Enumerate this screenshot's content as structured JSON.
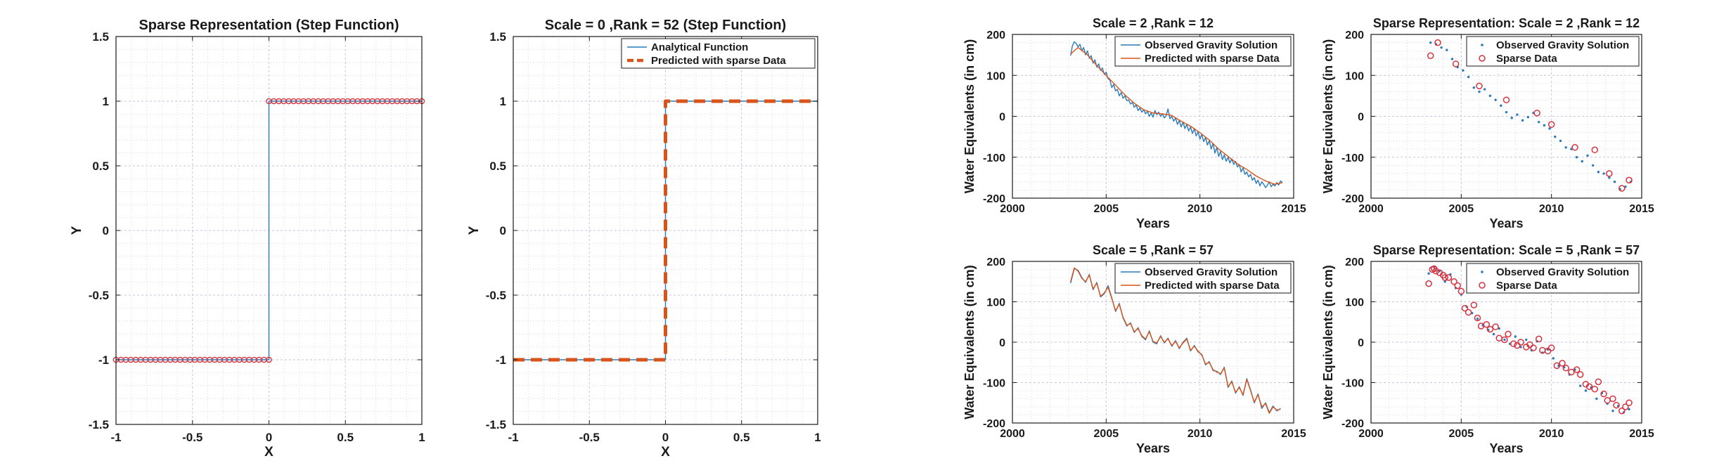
{
  "colors": {
    "blue": "#2a7ab8",
    "orange": "#d9541a",
    "marker_red": "#d4323f",
    "grid_major": "#c9c2e3",
    "grid_minor": "#d2d2d2",
    "axis": "#1a1a1a"
  },
  "chart_data": [
    {
      "type": "line",
      "title": "Sparse Representation (Step Function)",
      "xlabel": "X",
      "ylabel": "Y",
      "xlim": [
        -1,
        1
      ],
      "ylim": [
        -1.5,
        1.5
      ],
      "xticks": [
        "-1",
        "-0.5",
        "0",
        "0.5",
        "1"
      ],
      "yticks": [
        "-1.5",
        "-1",
        "-0.5",
        "0",
        "0.5",
        "1",
        "1.5"
      ],
      "grid": true,
      "legend": [],
      "series": [
        {
          "style": "line",
          "x": [
            -1,
            0,
            0,
            1
          ],
          "y": [
            -1,
            -1,
            1,
            1
          ]
        },
        {
          "style": "markers",
          "step_from": -1,
          "step_to": 1,
          "count_each_side": 32,
          "left_y": -1,
          "right_y": 1
        }
      ]
    },
    {
      "type": "line",
      "title": "Scale = 0 ,Rank = 52 (Step Function)",
      "xlabel": "X",
      "ylabel": "Y",
      "xlim": [
        -1,
        1
      ],
      "ylim": [
        -1.5,
        1.5
      ],
      "xticks": [
        "-1",
        "-0.5",
        "0",
        "0.5",
        "1"
      ],
      "yticks": [
        "-1.5",
        "-1",
        "-0.5",
        "0",
        "0.5",
        "1",
        "1.5"
      ],
      "grid": true,
      "legend_position": "top-right",
      "series": [
        {
          "name": "Analytical Function",
          "style": "line",
          "x": [
            -1,
            0,
            0,
            1
          ],
          "y": [
            -1,
            -1,
            1,
            1
          ]
        },
        {
          "name": "Predicted with sparse Data",
          "style": "dashed",
          "x": [
            -1,
            0,
            0,
            1
          ],
          "y": [
            -1,
            -1,
            1,
            1
          ]
        }
      ]
    },
    {
      "type": "line",
      "title": "Scale = 2 ,Rank = 12",
      "xlabel": "Years",
      "ylabel": "Water Equivalents (in cm)",
      "xlim": [
        2000,
        2015
      ],
      "ylim": [
        -200,
        200
      ],
      "xticks": [
        "2000",
        "2005",
        "2010",
        "2015"
      ],
      "yticks": [
        "-200",
        "-100",
        "0",
        "100",
        "200"
      ],
      "grid": true,
      "legend_position": "top-right",
      "series": [
        {
          "name": "Observed Gravity Solution",
          "style": "line",
          "x": [
            2003.1,
            2003.2,
            2003.3,
            2003.4,
            2003.5,
            2003.6,
            2003.7,
            2003.8,
            2003.9,
            2004.0,
            2004.1,
            2004.2,
            2004.3,
            2004.4,
            2004.5,
            2004.6,
            2004.7,
            2004.8,
            2004.9,
            2005.0,
            2005.1,
            2005.2,
            2005.3,
            2005.4,
            2005.5,
            2005.6,
            2005.7,
            2005.8,
            2005.9,
            2006.0,
            2006.1,
            2006.2,
            2006.3,
            2006.4,
            2006.5,
            2006.6,
            2006.7,
            2006.8,
            2006.9,
            2007.0,
            2007.1,
            2007.2,
            2007.3,
            2007.4,
            2007.5,
            2007.6,
            2007.7,
            2007.8,
            2007.9,
            2008.0,
            2008.1,
            2008.2,
            2008.3,
            2008.4,
            2008.5,
            2008.6,
            2008.7,
            2008.8,
            2008.9,
            2009.0,
            2009.1,
            2009.2,
            2009.3,
            2009.4,
            2009.5,
            2009.6,
            2009.7,
            2009.8,
            2009.9,
            2010.0,
            2010.1,
            2010.2,
            2010.3,
            2010.4,
            2010.5,
            2010.6,
            2010.7,
            2010.8,
            2010.9,
            2011.0,
            2011.1,
            2011.2,
            2011.3,
            2011.4,
            2011.5,
            2011.6,
            2011.7,
            2011.8,
            2011.9,
            2012.0,
            2012.1,
            2012.2,
            2012.3,
            2012.4,
            2012.5,
            2012.6,
            2012.7,
            2012.8,
            2012.9,
            2013.0,
            2013.1,
            2013.2,
            2013.3,
            2013.4,
            2013.5,
            2013.6,
            2013.7,
            2013.8,
            2013.9,
            2014.0,
            2014.1,
            2014.2,
            2014.3,
            2014.4
          ],
          "y": [
            148,
            172,
            182,
            178,
            170,
            176,
            160,
            168,
            150,
            160,
            142,
            148,
            130,
            138,
            120,
            128,
            112,
            118,
            102,
            108,
            92,
            88,
            70,
            78,
            62,
            66,
            50,
            58,
            44,
            50,
            38,
            40,
            30,
            34,
            22,
            28,
            14,
            20,
            10,
            16,
            6,
            12,
            0,
            8,
            -2,
            14,
            4,
            10,
            0,
            6,
            -4,
            2,
            18,
            -6,
            0,
            -12,
            -4,
            -20,
            -10,
            -26,
            -14,
            -30,
            -20,
            -36,
            -26,
            -42,
            -30,
            -48,
            -38,
            -56,
            -44,
            -62,
            -52,
            -70,
            -60,
            -80,
            -66,
            -90,
            -76,
            -98,
            -86,
            -106,
            -94,
            -110,
            -100,
            -114,
            -104,
            -118,
            -110,
            -124,
            -118,
            -136,
            -126,
            -142,
            -136,
            -148,
            -142,
            -156,
            -150,
            -164,
            -156,
            -170,
            -160,
            -166,
            -174,
            -168,
            -160,
            -172,
            -166,
            -170,
            -162,
            -168,
            -158,
            -162
          ]
        },
        {
          "name": "Predicted with sparse Data",
          "style": "line",
          "x": [
            2003.1,
            2003.5,
            2004.0,
            2004.5,
            2005.0,
            2005.5,
            2006.0,
            2006.5,
            2007.0,
            2007.5,
            2008.0,
            2008.5,
            2009.0,
            2009.5,
            2010.0,
            2010.5,
            2011.0,
            2011.5,
            2012.0,
            2012.5,
            2013.0,
            2013.5,
            2014.0,
            2014.4
          ],
          "y": [
            152,
            168,
            150,
            124,
            100,
            76,
            52,
            32,
            16,
            8,
            6,
            2,
            -12,
            -24,
            -40,
            -58,
            -80,
            -98,
            -116,
            -130,
            -146,
            -158,
            -166,
            -162
          ]
        }
      ]
    },
    {
      "type": "scatter",
      "title": "Sparse Representation: Scale = 2 ,Rank = 12",
      "xlabel": "Years",
      "ylabel": "Water Equivalents (in cm)",
      "xlim": [
        2000,
        2015
      ],
      "ylim": [
        -200,
        200
      ],
      "xticks": [
        "2000",
        "2005",
        "2010",
        "2015"
      ],
      "yticks": [
        "-200",
        "-100",
        "0",
        "100",
        "200"
      ],
      "grid": true,
      "legend_position": "top-right",
      "series": [
        {
          "name": "Observed Gravity Solution",
          "style": "dots",
          "x": [
            2003.3,
            2003.6,
            2003.9,
            2004.2,
            2004.5,
            2004.8,
            2005.1,
            2005.4,
            2005.7,
            2006.0,
            2006.3,
            2006.6,
            2006.9,
            2007.2,
            2007.5,
            2007.8,
            2008.1,
            2008.4,
            2008.7,
            2009.0,
            2009.3,
            2009.6,
            2009.9,
            2010.2,
            2010.5,
            2010.8,
            2011.1,
            2011.4,
            2011.7,
            2012.0,
            2012.3,
            2012.6,
            2012.9,
            2013.2,
            2013.5,
            2013.8,
            2014.1,
            2014.4
          ],
          "y": [
            180,
            176,
            168,
            162,
            140,
            120,
            112,
            96,
            70,
            60,
            66,
            50,
            40,
            26,
            10,
            -4,
            4,
            -10,
            -2,
            8,
            -14,
            -22,
            -30,
            -50,
            -60,
            -76,
            -80,
            -100,
            -110,
            -96,
            -120,
            -136,
            -140,
            -150,
            -160,
            -178,
            -172,
            -160
          ]
        },
        {
          "name": "Sparse Data",
          "style": "circles",
          "x": [
            2003.3,
            2003.7,
            2004.7,
            2006.0,
            2007.5,
            2009.2,
            2010.0,
            2011.3,
            2012.4,
            2013.2,
            2013.9,
            2014.3
          ],
          "y": [
            148,
            180,
            128,
            74,
            40,
            8,
            -20,
            -76,
            -82,
            -140,
            -176,
            -156
          ]
        }
      ]
    },
    {
      "type": "line",
      "title": "Scale = 5 ,Rank = 57",
      "xlabel": "Years",
      "ylabel": "Water Equivalents (in cm)",
      "xlim": [
        2000,
        2015
      ],
      "ylim": [
        -200,
        200
      ],
      "xticks": [
        "2000",
        "2005",
        "2010",
        "2015"
      ],
      "yticks": [
        "-200",
        "-100",
        "0",
        "100",
        "200"
      ],
      "grid": true,
      "legend_position": "top-right",
      "series": [
        {
          "name": "Observed Gravity Solution",
          "style": "line",
          "x": [
            2003.1,
            2003.3,
            2003.5,
            2003.7,
            2003.9,
            2004.1,
            2004.3,
            2004.5,
            2004.7,
            2004.9,
            2005.1,
            2005.3,
            2005.5,
            2005.7,
            2005.9,
            2006.1,
            2006.3,
            2006.5,
            2006.7,
            2006.9,
            2007.1,
            2007.3,
            2007.5,
            2007.7,
            2007.9,
            2008.1,
            2008.3,
            2008.5,
            2008.7,
            2008.9,
            2009.1,
            2009.3,
            2009.5,
            2009.7,
            2009.9,
            2010.1,
            2010.3,
            2010.5,
            2010.7,
            2010.9,
            2011.1,
            2011.3,
            2011.5,
            2011.7,
            2011.9,
            2012.1,
            2012.3,
            2012.5,
            2012.7,
            2012.9,
            2013.1,
            2013.3,
            2013.5,
            2013.7,
            2013.9,
            2014.1,
            2014.3
          ],
          "y": [
            146,
            182,
            178,
            160,
            148,
            168,
            130,
            148,
            112,
            120,
            140,
            110,
            76,
            96,
            60,
            40,
            48,
            24,
            36,
            14,
            6,
            28,
            0,
            -4,
            16,
            -2,
            10,
            -10,
            4,
            -16,
            0,
            10,
            -22,
            -8,
            -24,
            -30,
            -56,
            -48,
            -70,
            -72,
            -80,
            -62,
            -112,
            -96,
            -126,
            -110,
            -132,
            -90,
            -118,
            -150,
            -128,
            -164,
            -150,
            -174,
            -158,
            -170,
            -164
          ]
        },
        {
          "name": "Predicted with sparse Data",
          "style": "line",
          "x": [
            2003.1,
            2003.3,
            2003.5,
            2003.7,
            2003.9,
            2004.1,
            2004.3,
            2004.5,
            2004.7,
            2004.9,
            2005.1,
            2005.3,
            2005.5,
            2005.7,
            2005.9,
            2006.1,
            2006.3,
            2006.5,
            2006.7,
            2006.9,
            2007.1,
            2007.3,
            2007.5,
            2007.7,
            2007.9,
            2008.1,
            2008.3,
            2008.5,
            2008.7,
            2008.9,
            2009.1,
            2009.3,
            2009.5,
            2009.7,
            2009.9,
            2010.1,
            2010.3,
            2010.5,
            2010.7,
            2010.9,
            2011.1,
            2011.3,
            2011.5,
            2011.7,
            2011.9,
            2012.1,
            2012.3,
            2012.5,
            2012.7,
            2012.9,
            2013.1,
            2013.3,
            2013.5,
            2013.7,
            2013.9,
            2014.1,
            2014.3
          ],
          "y": [
            150,
            184,
            176,
            158,
            150,
            166,
            132,
            146,
            114,
            122,
            136,
            108,
            78,
            94,
            62,
            42,
            46,
            26,
            34,
            16,
            8,
            26,
            2,
            -2,
            14,
            0,
            8,
            -8,
            2,
            -14,
            -2,
            8,
            -20,
            -10,
            -22,
            -32,
            -54,
            -50,
            -68,
            -74,
            -78,
            -64,
            -110,
            -98,
            -124,
            -112,
            -130,
            -92,
            -120,
            -148,
            -130,
            -160,
            -152,
            -176,
            -160,
            -168,
            -166
          ]
        }
      ]
    },
    {
      "type": "scatter",
      "title": "Sparse Representation: Scale = 5 ,Rank = 57",
      "xlabel": "Years",
      "ylabel": "Water Equivalents (in cm)",
      "xlim": [
        2000,
        2015
      ],
      "ylim": [
        -200,
        200
      ],
      "xticks": [
        "2000",
        "2005",
        "2010",
        "2015"
      ],
      "yticks": [
        "-200",
        "-100",
        "0",
        "100",
        "200"
      ],
      "grid": true,
      "legend_position": "top-right",
      "series": [
        {
          "name": "Observed Gravity Solution",
          "style": "dots",
          "x": [
            2003.2,
            2003.5,
            2003.8,
            2004.1,
            2004.4,
            2004.7,
            2005.0,
            2005.3,
            2005.6,
            2005.9,
            2006.2,
            2006.5,
            2006.8,
            2007.1,
            2007.4,
            2007.7,
            2008.0,
            2008.3,
            2008.6,
            2008.9,
            2009.2,
            2009.5,
            2009.8,
            2010.1,
            2010.4,
            2010.7,
            2011.0,
            2011.3,
            2011.6,
            2011.9,
            2012.2,
            2012.5,
            2012.8,
            2013.1,
            2013.4,
            2013.7,
            2014.0,
            2014.3
          ],
          "y": [
            170,
            186,
            176,
            150,
            168,
            134,
            118,
            88,
            72,
            58,
            42,
            30,
            20,
            34,
            6,
            -4,
            14,
            -12,
            6,
            -20,
            2,
            -26,
            -18,
            -40,
            -58,
            -62,
            -80,
            -68,
            -108,
            -120,
            -112,
            -140,
            -126,
            -152,
            -170,
            -158,
            -174,
            -166
          ]
        },
        {
          "name": "Sparse Data",
          "style": "circles",
          "x": [
            2003.2,
            2003.4,
            2003.5,
            2003.6,
            2003.8,
            2004.0,
            2004.1,
            2004.3,
            2004.6,
            2004.8,
            2005.0,
            2005.2,
            2005.4,
            2005.7,
            2005.9,
            2006.1,
            2006.4,
            2006.6,
            2006.9,
            2007.1,
            2007.4,
            2007.6,
            2007.9,
            2008.1,
            2008.3,
            2008.6,
            2008.8,
            2009.0,
            2009.3,
            2009.5,
            2009.8,
            2010.0,
            2010.3,
            2010.6,
            2010.8,
            2011.1,
            2011.4,
            2011.6,
            2011.9,
            2012.1,
            2012.4,
            2012.6,
            2012.9,
            2013.1,
            2013.4,
            2013.6,
            2013.9,
            2014.1,
            2014.3
          ],
          "y": [
            145,
            180,
            182,
            176,
            172,
            166,
            160,
            160,
            150,
            140,
            126,
            84,
            74,
            92,
            60,
            40,
            44,
            32,
            38,
            10,
            6,
            20,
            -4,
            -8,
            0,
            -12,
            -6,
            -14,
            8,
            -20,
            -22,
            -14,
            -58,
            -52,
            -64,
            -74,
            -68,
            -80,
            -104,
            -110,
            -116,
            -98,
            -128,
            -144,
            -140,
            -156,
            -170,
            -160,
            -150
          ]
        }
      ]
    }
  ]
}
